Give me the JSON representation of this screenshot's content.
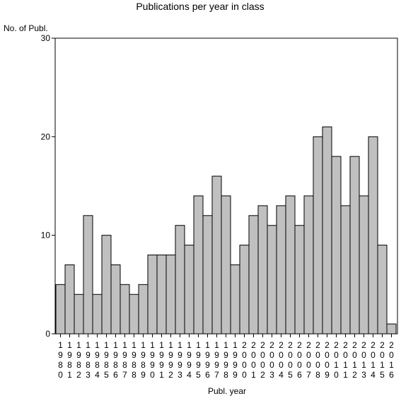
{
  "chart_data": {
    "type": "bar",
    "title": "Publications per year in class",
    "ylabel": "No. of Publ.",
    "xlabel": "Publ. year",
    "ylim": [
      0,
      30
    ],
    "yticks": [
      0,
      10,
      20,
      30
    ],
    "grid": false,
    "colors": {
      "bar": "#c0c0c0",
      "stroke": "#000000"
    },
    "categories": [
      "1980",
      "1981",
      "1982",
      "1983",
      "1984",
      "1985",
      "1986",
      "1987",
      "1988",
      "1989",
      "1990",
      "1991",
      "1992",
      "1993",
      "1994",
      "1995",
      "1996",
      "1997",
      "1998",
      "1999",
      "2000",
      "2001",
      "2002",
      "2003",
      "2004",
      "2005",
      "2006",
      "2007",
      "2008",
      "2009",
      "2010",
      "2011",
      "2012",
      "2013",
      "2014",
      "2015",
      "2016"
    ],
    "values": [
      5,
      7,
      4,
      12,
      4,
      10,
      7,
      5,
      4,
      5,
      8,
      8,
      8,
      11,
      9,
      14,
      12,
      16,
      14,
      7,
      9,
      12,
      13,
      11,
      13,
      14,
      11,
      14,
      20,
      21,
      18,
      13,
      18,
      14,
      20,
      9,
      1
    ]
  }
}
